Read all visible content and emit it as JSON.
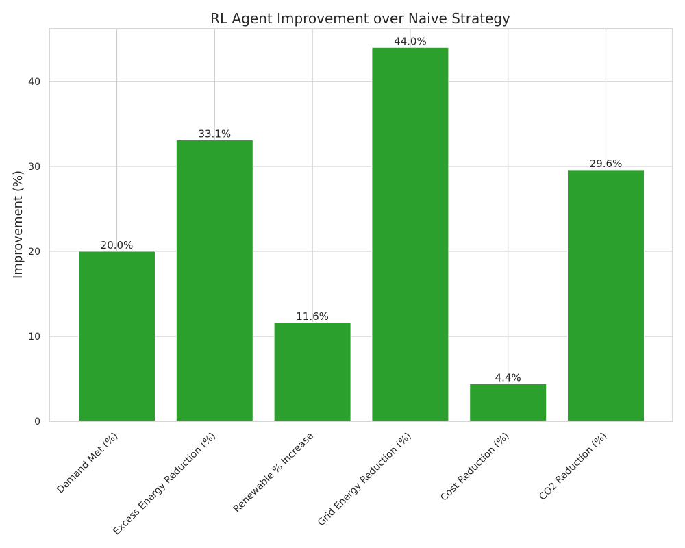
{
  "chart_data": {
    "type": "bar",
    "title": "RL Agent Improvement over Naive Strategy",
    "xlabel": "",
    "ylabel": "Improvement (%)",
    "ylim": [
      0,
      46.2
    ],
    "yticks": [
      0,
      10,
      20,
      30,
      40
    ],
    "grid": true,
    "categories": [
      "Demand Met (%)",
      "Excess Energy Reduction (%)",
      "Renewable % Increase",
      "Grid Energy Reduction (%)",
      "Cost Reduction (%)",
      "CO2 Reduction (%)"
    ],
    "values": [
      20.0,
      33.1,
      11.6,
      44.0,
      4.4,
      29.6
    ],
    "data_labels": [
      "20.0%",
      "33.1%",
      "11.6%",
      "44.0%",
      "4.4%",
      "29.6%"
    ],
    "bar_color": "#2ca02c",
    "grid_color": "#cccccc",
    "text_color": "#262626"
  }
}
